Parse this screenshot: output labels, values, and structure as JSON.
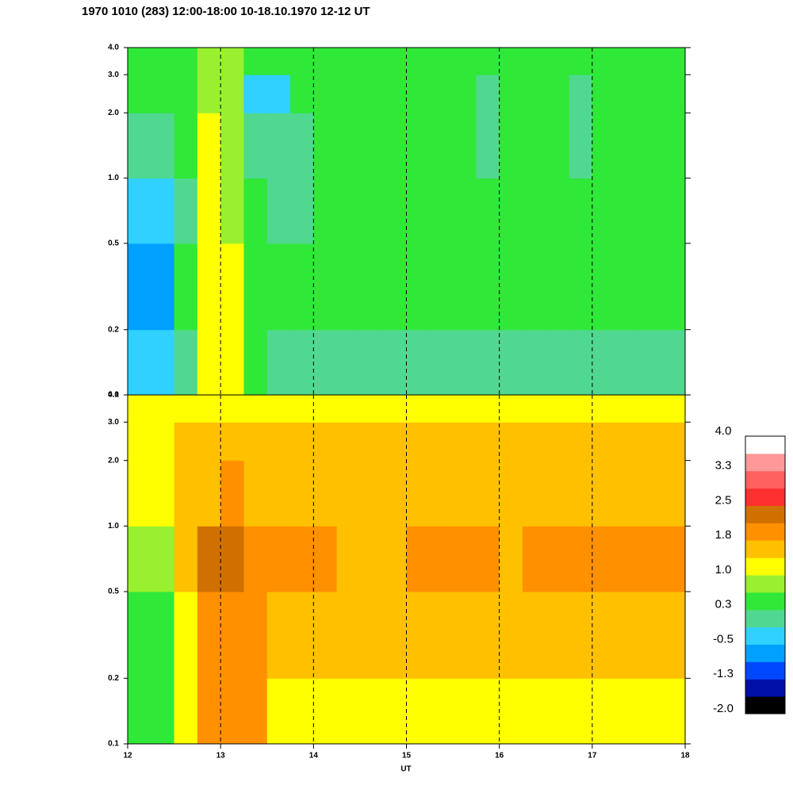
{
  "chart_data": {
    "type": "heatmap",
    "title": "1970 1010 (283) 12:00-18:00 10-18.10.1970  12-12 UT",
    "xlabel": "UT",
    "xlim": [
      12,
      18
    ],
    "xticks": [
      12,
      13,
      14,
      15,
      16,
      17,
      18
    ],
    "grid": true,
    "ylim": [
      0.1,
      4
    ],
    "log_y": true,
    "yticks": [
      {
        "value": 0.1,
        "label": "0.1"
      },
      {
        "value": 0.2,
        "label": "0.2"
      },
      {
        "value": 0.5,
        "label": "0.5"
      },
      {
        "value": 1,
        "label": "1.0"
      },
      {
        "value": 2,
        "label": "2.0"
      },
      {
        "value": 3,
        "label": "3.0"
      },
      {
        "value": 4,
        "label": "4.0"
      }
    ],
    "xbins": [
      12,
      12.25,
      12.5,
      12.75,
      13,
      13.25,
      13.5,
      13.75,
      14,
      14.25,
      14.5,
      14.75,
      15,
      15.25,
      15.5,
      15.75,
      16,
      16.25,
      16.5,
      16.75,
      17,
      17.25,
      17.5,
      17.75,
      18
    ],
    "ybins": [
      0.1,
      0.2,
      0.5,
      1,
      2,
      3,
      4
    ],
    "colorscale": {
      "range": [
        -2,
        4
      ],
      "colors": [
        "#000000",
        "#0010a8",
        "#0048ff",
        "#00a0ff",
        "#30d0ff",
        "#50d890",
        "#30e838",
        "#98f030",
        "#ffff00",
        "#ffc000",
        "#ff9000",
        "#d07000",
        "#ff3030",
        "#ff6060",
        "#ff9898",
        "#ffffff"
      ],
      "ticks": [
        {
          "value": 4,
          "label": "4.0"
        },
        {
          "value": 3.25,
          "label": "3.3"
        },
        {
          "value": 2.5,
          "label": "2.5"
        },
        {
          "value": 1.75,
          "label": "1.8"
        },
        {
          "value": 1,
          "label": "1.0"
        },
        {
          "value": 0.25,
          "label": "0.3"
        },
        {
          "value": -0.5,
          "label": "-0.5"
        },
        {
          "value": -1.25,
          "label": "-1.3"
        },
        {
          "value": -2,
          "label": "-2.0"
        }
      ]
    },
    "panels": [
      {
        "z": [
          [
            -0.4,
            -0.4,
            0.2,
            1.1,
            1.0,
            0.4,
            0.2,
            0.2,
            0.2,
            0.2,
            0.2,
            0.2,
            0.2,
            0.2,
            0.2,
            0.2,
            0.2,
            0.2,
            0.2,
            0.2,
            0.2,
            0.2,
            0.2,
            0.2
          ],
          [
            -0.6,
            -0.6,
            0.3,
            1.1,
            1.0,
            0.5,
            0.5,
            0.5,
            0.5,
            0.6,
            0.5,
            0.5,
            0.5,
            0.5,
            0.5,
            0.6,
            0.5,
            0.5,
            0.5,
            0.5,
            0.5,
            0.6,
            0.5,
            0.5
          ],
          [
            -0.2,
            -0.2,
            0.2,
            1.0,
            0.9,
            0.3,
            0.2,
            0.2,
            0.4,
            0.4,
            0.4,
            0.3,
            0.4,
            0.4,
            0.4,
            0.4,
            0.4,
            0.4,
            0.3,
            0.4,
            0.4,
            0.4,
            0.4,
            0.5
          ],
          [
            0.2,
            0.2,
            0.3,
            1.0,
            0.8,
            0.1,
            -0.1,
            0.2,
            0.4,
            0.4,
            0.4,
            0.4,
            0.4,
            0.4,
            0.3,
            0.0,
            0.3,
            0.4,
            0.4,
            0.1,
            0.3,
            0.4,
            0.4,
            0.5
          ],
          [
            0.3,
            0.3,
            0.4,
            0.8,
            0.7,
            -0.2,
            -0.2,
            0.3,
            0.4,
            0.4,
            0.4,
            0.4,
            0.4,
            0.4,
            0.3,
            -0.1,
            0.3,
            0.4,
            0.4,
            0.0,
            0.3,
            0.4,
            0.4,
            0.5
          ],
          [
            0.6,
            0.6,
            0.6,
            0.7,
            0.7,
            0.5,
            0.5,
            0.6,
            0.6,
            0.6,
            0.6,
            0.6,
            0.6,
            0.6,
            0.6,
            0.5,
            0.6,
            0.6,
            0.6,
            0.6,
            0.6,
            0.6,
            0.6,
            0.6
          ]
        ]
      },
      {
        "z": [
          [
            0.5,
            0.5,
            1.0,
            1.9,
            1.9,
            1.9,
            1.3,
            1.3,
            1.3,
            1.3,
            1.3,
            1.3,
            1.3,
            1.3,
            1.3,
            1.3,
            1.3,
            1.3,
            1.3,
            1.3,
            1.3,
            1.3,
            1.3,
            1.3
          ],
          [
            0.4,
            0.4,
            1.0,
            1.9,
            1.9,
            1.9,
            1.4,
            1.4,
            1.4,
            1.4,
            1.4,
            1.4,
            1.4,
            1.4,
            1.4,
            1.4,
            1.4,
            1.4,
            1.4,
            1.4,
            1.4,
            1.4,
            1.4,
            1.4
          ],
          [
            0.8,
            0.8,
            1.5,
            2.2,
            2.2,
            1.9,
            1.8,
            1.8,
            1.8,
            1.7,
            1.7,
            1.7,
            1.8,
            1.8,
            1.8,
            1.8,
            1.7,
            1.8,
            1.8,
            1.8,
            1.8,
            1.8,
            1.8,
            1.8
          ],
          [
            1.0,
            1.0,
            1.4,
            1.7,
            2.0,
            1.7,
            1.6,
            1.6,
            1.6,
            1.6,
            1.6,
            1.6,
            1.6,
            1.6,
            1.6,
            1.6,
            1.6,
            1.6,
            1.6,
            1.6,
            1.6,
            1.6,
            1.6,
            1.6
          ],
          [
            1.2,
            1.2,
            1.6,
            1.7,
            1.7,
            1.7,
            1.7,
            1.7,
            1.7,
            1.7,
            1.7,
            1.7,
            1.7,
            1.7,
            1.7,
            1.7,
            1.7,
            1.7,
            1.7,
            1.7,
            1.7,
            1.7,
            1.7,
            1.7
          ],
          [
            1.0,
            1.0,
            1.1,
            1.2,
            1.2,
            1.2,
            1.2,
            1.2,
            1.2,
            1.2,
            1.2,
            1.2,
            1.2,
            1.2,
            1.2,
            1.2,
            1.2,
            1.2,
            1.2,
            1.2,
            1.2,
            1.2,
            1.2,
            1.2
          ]
        ]
      }
    ]
  }
}
